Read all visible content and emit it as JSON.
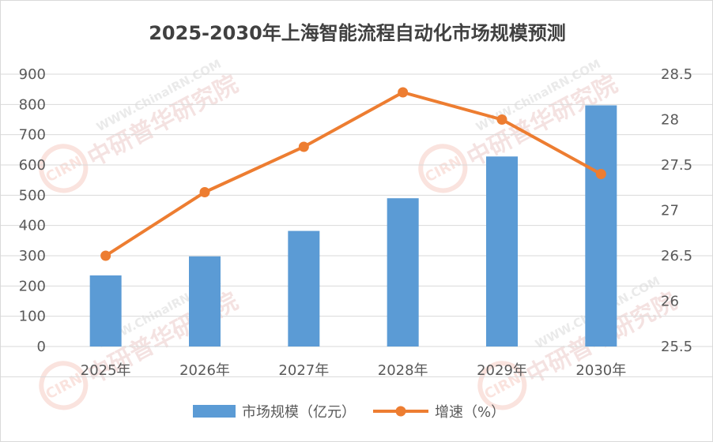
{
  "chart_data": {
    "type": "bar",
    "title": "2025-2030年上海智能流程自动化市场规模预测",
    "categories": [
      "2025年",
      "2026年",
      "2027年",
      "2028年",
      "2029年",
      "2030年"
    ],
    "series": [
      {
        "name": "市场规模（亿元）",
        "type": "bar",
        "axis": "left",
        "color": "#5b9bd5",
        "values": [
          235,
          298,
          382,
          490,
          628,
          797
        ]
      },
      {
        "name": "增速（%）",
        "type": "line",
        "axis": "right",
        "color": "#ed7d31",
        "values": [
          26.5,
          27.2,
          27.7,
          28.3,
          28.0,
          27.4
        ]
      }
    ],
    "y_left": {
      "min": 0,
      "max": 900,
      "ticks": [
        "0",
        "100",
        "200",
        "300",
        "400",
        "500",
        "600",
        "700",
        "800",
        "900"
      ]
    },
    "y_right": {
      "min": 25.5,
      "max": 28.5,
      "ticks": [
        "25.5",
        "26",
        "26.5",
        "27",
        "27.5",
        "28",
        "28.5"
      ]
    },
    "grid": true,
    "legend_position": "bottom"
  },
  "watermark": {
    "brand": "中研普华研究院",
    "url": "WWW.ChinaIRN.COM",
    "logo": "CIRN"
  }
}
